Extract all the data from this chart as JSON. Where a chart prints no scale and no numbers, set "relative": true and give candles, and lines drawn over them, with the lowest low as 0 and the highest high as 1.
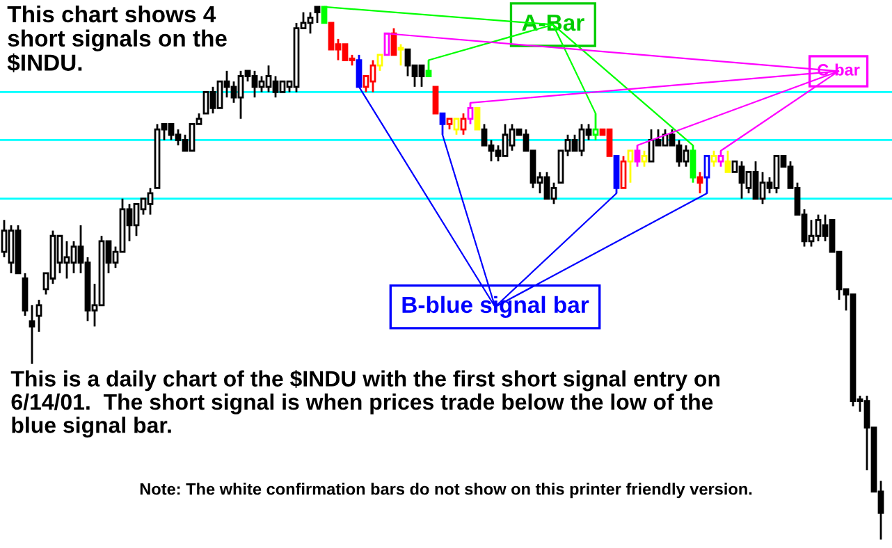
{
  "chart_data": {
    "type": "candlestick",
    "relative": true,
    "categories": [
      null,
      null,
      null,
      null,
      null,
      null,
      null,
      null,
      null,
      null,
      null,
      null,
      null,
      null,
      null,
      null,
      null,
      null,
      null,
      null,
      null,
      null,
      null,
      null,
      null,
      null,
      null,
      null,
      null,
      null,
      null,
      null,
      null,
      null,
      null,
      null,
      null,
      null,
      null,
      null,
      null,
      null,
      null,
      null,
      null,
      null,
      null,
      null,
      null,
      null,
      null,
      null,
      null,
      null,
      null,
      null,
      null,
      null,
      null,
      null,
      null,
      null,
      null,
      null,
      null,
      null,
      null,
      null,
      null,
      null,
      null,
      null,
      null,
      null,
      null,
      null,
      null,
      null,
      null,
      null,
      null,
      null,
      null,
      null,
      null,
      null,
      null,
      null,
      null,
      null,
      null,
      null,
      null,
      null,
      null,
      null,
      null,
      null,
      null,
      null,
      null,
      null,
      null,
      null,
      null,
      null,
      null,
      null,
      null,
      null,
      null,
      null,
      null,
      null,
      null,
      null,
      null,
      null,
      null,
      null,
      null,
      null,
      null,
      null,
      null,
      null,
      null
    ],
    "ohlc": [
      [
        0.54,
        0.6,
        0.53,
        0.58
      ],
      [
        0.52,
        0.59,
        0.5,
        0.58
      ],
      [
        0.58,
        0.59,
        0.5,
        0.5
      ],
      [
        0.49,
        0.5,
        0.42,
        0.43
      ],
      [
        0.41,
        0.44,
        0.33,
        0.4
      ],
      [
        0.42,
        0.45,
        0.39,
        0.44
      ],
      [
        0.47,
        0.5,
        0.46,
        0.5
      ],
      [
        0.49,
        0.58,
        0.48,
        0.57
      ],
      [
        0.52,
        0.57,
        0.5,
        0.57
      ],
      [
        0.52,
        0.56,
        0.49,
        0.53
      ],
      [
        0.52,
        0.56,
        0.5,
        0.55
      ],
      [
        0.55,
        0.59,
        0.5,
        0.52
      ],
      [
        0.52,
        0.53,
        0.41,
        0.43
      ],
      [
        0.43,
        0.48,
        0.4,
        0.44
      ],
      [
        0.44,
        0.57,
        0.44,
        0.56
      ],
      [
        0.56,
        0.56,
        0.5,
        0.52
      ],
      [
        0.52,
        0.55,
        0.51,
        0.54
      ],
      [
        0.54,
        0.64,
        0.54,
        0.62
      ],
      [
        0.62,
        0.63,
        0.56,
        0.59
      ],
      [
        0.59,
        0.63,
        0.57,
        0.63
      ],
      [
        0.62,
        0.64,
        0.61,
        0.64
      ],
      [
        0.63,
        0.66,
        0.61,
        0.65
      ],
      [
        0.66,
        0.78,
        0.66,
        0.77
      ],
      [
        0.78,
        0.78,
        0.75,
        0.77
      ],
      [
        0.78,
        0.78,
        0.75,
        0.76
      ],
      [
        0.76,
        0.77,
        0.74,
        0.75
      ],
      [
        0.75,
        0.76,
        0.73,
        0.73
      ],
      [
        0.73,
        0.78,
        0.73,
        0.78
      ],
      [
        0.78,
        0.8,
        0.78,
        0.79
      ],
      [
        0.8,
        0.84,
        0.8,
        0.84
      ],
      [
        0.84,
        0.85,
        0.8,
        0.81
      ],
      [
        0.81,
        0.86,
        0.81,
        0.86
      ],
      [
        0.86,
        0.88,
        0.83,
        0.85
      ],
      [
        0.85,
        0.86,
        0.82,
        0.83
      ],
      [
        0.83,
        0.88,
        0.79,
        0.87
      ],
      [
        0.88,
        0.88,
        0.86,
        0.87
      ],
      [
        0.87,
        0.88,
        0.83,
        0.85
      ],
      [
        0.85,
        0.87,
        0.84,
        0.86
      ],
      [
        0.85,
        0.89,
        0.84,
        0.87
      ],
      [
        0.86,
        0.87,
        0.83,
        0.84
      ],
      [
        0.84,
        0.86,
        0.84,
        0.86
      ],
      [
        0.85,
        0.86,
        0.84,
        0.86
      ],
      [
        0.85,
        0.97,
        0.84,
        0.96
      ],
      [
        0.96,
        0.99,
        0.96,
        0.97
      ],
      [
        0.97,
        0.99,
        0.95,
        0.98
      ],
      [
        1.0,
        1.0,
        0.97,
        0.99
      ],
      [
        1.0,
        1.0,
        0.97,
        0.97
      ],
      [
        0.97,
        0.97,
        0.92,
        0.92
      ],
      [
        0.93,
        0.94,
        0.9,
        0.92
      ],
      [
        0.93,
        0.93,
        0.9,
        0.9
      ],
      [
        0.9,
        0.91,
        0.89,
        0.9
      ],
      [
        0.9,
        0.91,
        0.85,
        0.85
      ],
      [
        0.85,
        0.87,
        0.84,
        0.87
      ],
      [
        0.86,
        0.9,
        0.84,
        0.89
      ],
      [
        0.89,
        0.91,
        0.88,
        0.91
      ],
      [
        0.91,
        0.95,
        0.91,
        0.95
      ],
      [
        0.95,
        0.96,
        0.91,
        0.91
      ],
      [
        0.92,
        0.93,
        0.89,
        0.92
      ],
      [
        0.92,
        0.92,
        0.87,
        0.89
      ],
      [
        0.89,
        0.89,
        0.85,
        0.87
      ],
      [
        0.89,
        0.89,
        0.85,
        0.87
      ],
      [
        0.88,
        0.9,
        0.87,
        0.87
      ],
      [
        0.85,
        0.85,
        0.8,
        0.8
      ],
      [
        0.8,
        0.8,
        0.76,
        0.78
      ],
      [
        0.78,
        0.79,
        0.77,
        0.79
      ],
      [
        0.77,
        0.79,
        0.76,
        0.79
      ],
      [
        0.77,
        0.8,
        0.76,
        0.79
      ],
      [
        0.79,
        0.82,
        0.78,
        0.81
      ],
      [
        0.81,
        0.81,
        0.77,
        0.77
      ],
      [
        0.77,
        0.78,
        0.74,
        0.74
      ],
      [
        0.74,
        0.75,
        0.71,
        0.73
      ],
      [
        0.73,
        0.74,
        0.71,
        0.72
      ],
      [
        0.72,
        0.78,
        0.72,
        0.76
      ],
      [
        0.74,
        0.78,
        0.73,
        0.77
      ],
      [
        0.77,
        0.77,
        0.76,
        0.76
      ],
      [
        0.76,
        0.77,
        0.73,
        0.73
      ],
      [
        0.73,
        0.73,
        0.66,
        0.67
      ],
      [
        0.67,
        0.69,
        0.65,
        0.68
      ],
      [
        0.68,
        0.69,
        0.64,
        0.64
      ],
      [
        0.64,
        0.67,
        0.63,
        0.66
      ],
      [
        0.67,
        0.73,
        0.67,
        0.73
      ],
      [
        0.73,
        0.76,
        0.72,
        0.75
      ],
      [
        0.75,
        0.76,
        0.73,
        0.73
      ],
      [
        0.73,
        0.78,
        0.72,
        0.77
      ],
      [
        0.77,
        0.78,
        0.75,
        0.76
      ],
      [
        0.76,
        0.8,
        0.75,
        0.77
      ],
      [
        0.77,
        0.77,
        0.76,
        0.76
      ],
      [
        0.77,
        0.77,
        0.72,
        0.72
      ],
      [
        0.72,
        0.72,
        0.65,
        0.66
      ],
      [
        0.66,
        0.72,
        0.66,
        0.71
      ],
      [
        0.71,
        0.73,
        0.67,
        0.73
      ],
      [
        0.73,
        0.74,
        0.7,
        0.71
      ],
      [
        0.71,
        0.73,
        0.7,
        0.72
      ],
      [
        0.71,
        0.77,
        0.71,
        0.75
      ],
      [
        0.75,
        0.77,
        0.74,
        0.74
      ],
      [
        0.74,
        0.77,
        0.74,
        0.76
      ],
      [
        0.76,
        0.77,
        0.74,
        0.74
      ],
      [
        0.74,
        0.75,
        0.7,
        0.71
      ],
      [
        0.71,
        0.74,
        0.7,
        0.73
      ],
      [
        0.73,
        0.74,
        0.67,
        0.68
      ],
      [
        0.68,
        0.69,
        0.65,
        0.67
      ],
      [
        0.68,
        0.72,
        0.65,
        0.72
      ],
      [
        0.71,
        0.73,
        0.7,
        0.72
      ],
      [
        0.71,
        0.73,
        0.7,
        0.72
      ],
      [
        0.71,
        0.73,
        0.69,
        0.69
      ],
      [
        0.69,
        0.71,
        0.69,
        0.71
      ],
      [
        0.7,
        0.71,
        0.64,
        0.67
      ],
      [
        0.66,
        0.69,
        0.65,
        0.69
      ],
      [
        0.69,
        0.71,
        0.64,
        0.64
      ],
      [
        0.64,
        0.69,
        0.63,
        0.67
      ],
      [
        0.67,
        0.68,
        0.65,
        0.66
      ],
      [
        0.66,
        0.72,
        0.65,
        0.72
      ],
      [
        0.72,
        0.72,
        0.7,
        0.7
      ],
      [
        0.7,
        0.71,
        0.66,
        0.66
      ],
      [
        0.66,
        0.67,
        0.61,
        0.61
      ],
      [
        0.61,
        0.62,
        0.55,
        0.56
      ],
      [
        0.56,
        0.6,
        0.55,
        0.57
      ],
      [
        0.57,
        0.61,
        0.56,
        0.6
      ],
      [
        0.59,
        0.61,
        0.56,
        0.57
      ],
      [
        0.6,
        0.6,
        0.54,
        0.54
      ],
      [
        0.54,
        0.54,
        0.45,
        0.47
      ],
      [
        0.47,
        0.47,
        0.43,
        0.46
      ],
      [
        0.46,
        0.46,
        0.25,
        0.26
      ],
      [
        0.26,
        0.27,
        0.24,
        0.26
      ],
      [
        0.26,
        0.27,
        0.13,
        0.21
      ],
      [
        0.21,
        0.21,
        0.09,
        0.09
      ],
      [
        0.09,
        0.11,
        0.0,
        0.05
      ]
    ],
    "colors": [
      "#000000",
      "#000000",
      "#000000",
      "#000000",
      "#000000",
      "#000000",
      "#000000",
      "#000000",
      "#000000",
      "#000000",
      "#000000",
      "#000000",
      "#000000",
      "#000000",
      "#000000",
      "#000000",
      "#000000",
      "#000000",
      "#000000",
      "#000000",
      "#000000",
      "#000000",
      "#000000",
      "#000000",
      "#000000",
      "#000000",
      "#000000",
      "#000000",
      "#000000",
      "#000000",
      "#000000",
      "#000000",
      "#000000",
      "#000000",
      "#000000",
      "#000000",
      "#000000",
      "#000000",
      "#000000",
      "#000000",
      "#000000",
      "#000000",
      "#000000",
      "#000000",
      "#000000",
      "#000000",
      "#00ff00",
      "#ff0000",
      "#ff0000",
      "#ff0000",
      "#ff0000",
      "#0000ff",
      "#ff0000",
      "#ff0000",
      "#ffff00",
      "#ff00ff",
      "#ff0000",
      "#ffff00",
      "#000000",
      "#000000",
      "#000000",
      "#00ff00",
      "#ff0000",
      "#0000ff",
      "#ff0000",
      "#ffff00",
      "#ff0000",
      "#ff00ff",
      "#ffff00",
      "#000000",
      "#000000",
      "#000000",
      "#000000",
      "#000000",
      "#000000",
      "#000000",
      "#000000",
      "#000000",
      "#000000",
      "#000000",
      "#000000",
      "#000000",
      "#000000",
      "#000000",
      "#000000",
      "#00ff00",
      "#ff0000",
      "#ff0000",
      "#0000ff",
      "#ff0000",
      "#ffff00",
      "#ff00ff",
      "#ffff00",
      "#000000",
      "#000000",
      "#000000",
      "#000000",
      "#000000",
      "#000000",
      "#00ff00",
      "#ff0000",
      "#0000ff",
      "#ffff00",
      "#ff00ff",
      "#ffff00",
      "#000000",
      "#000000",
      "#000000",
      "#000000",
      "#000000",
      "#000000",
      "#000000",
      "#000000",
      "#000000",
      "#000000",
      "#000000",
      "#000000",
      "#000000",
      "#000000",
      "#000000",
      "#000000",
      "#000000",
      "#000000",
      "#000000",
      "#000000",
      "#000000",
      "#000000"
    ],
    "ref_lines": [
      {
        "axis": "y",
        "value": 0.84,
        "color": "#00ffff"
      },
      {
        "axis": "y",
        "value": 0.75,
        "color": "#00ffff"
      },
      {
        "axis": "y",
        "value": 0.64,
        "color": "#00ffff"
      }
    ],
    "annotations": [
      "This chart shows 4\nshort signals on the\n$INDU.",
      "A-Bar",
      "C-bar",
      "B-blue signal bar",
      "This is a daily chart of the $INDU with the first short signal entry on\n6/14/01.  The short signal is when prices trade below the low of the\nblue signal bar.",
      "Note: The white confirmation bars do not show on this printer friendly version."
    ]
  }
}
